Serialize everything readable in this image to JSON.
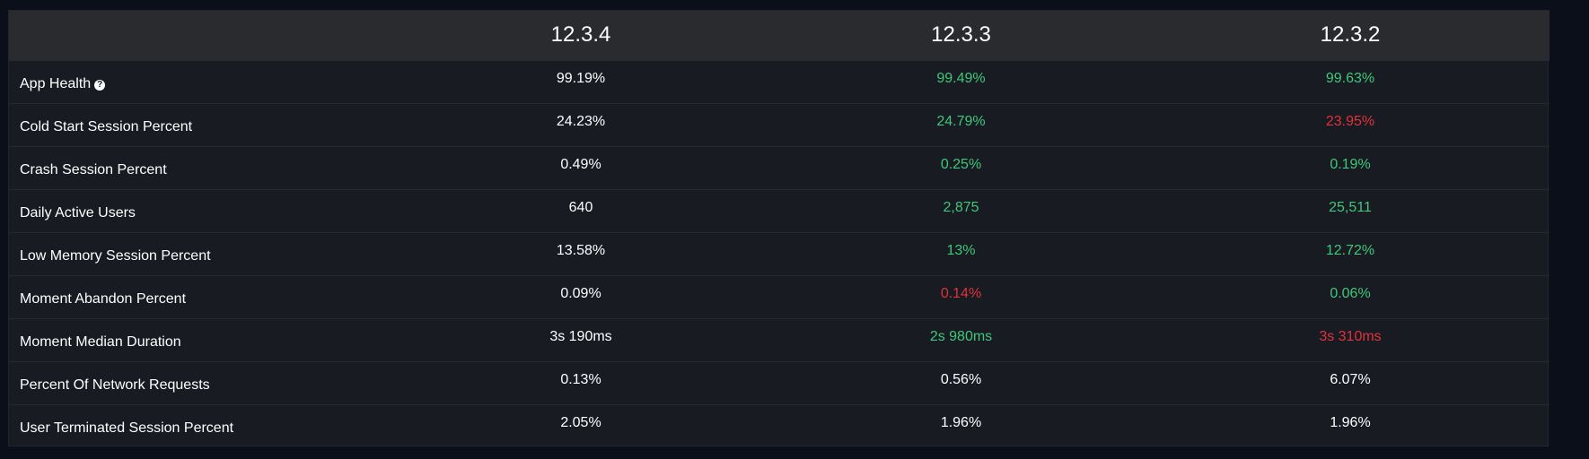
{
  "colors": {
    "neutral": "#ffffff",
    "better": "#3ec77a",
    "worse": "#e0323b"
  },
  "header": {
    "versions": [
      "12.3.4",
      "12.3.3",
      "12.3.2"
    ]
  },
  "rows": [
    {
      "label": "App Health",
      "help_icon": "question-circle-icon",
      "values": [
        "99.19%",
        "99.49%",
        "99.63%"
      ],
      "status": [
        "neutral",
        "better",
        "better"
      ]
    },
    {
      "label": "Cold Start Session Percent",
      "values": [
        "24.23%",
        "24.79%",
        "23.95%"
      ],
      "status": [
        "neutral",
        "better",
        "worse"
      ]
    },
    {
      "label": "Crash Session Percent",
      "values": [
        "0.49%",
        "0.25%",
        "0.19%"
      ],
      "status": [
        "neutral",
        "better",
        "better"
      ]
    },
    {
      "label": "Daily Active Users",
      "values": [
        "640",
        "2,875",
        "25,511"
      ],
      "status": [
        "neutral",
        "better",
        "better"
      ]
    },
    {
      "label": "Low Memory Session Percent",
      "values": [
        "13.58%",
        "13%",
        "12.72%"
      ],
      "status": [
        "neutral",
        "better",
        "better"
      ]
    },
    {
      "label": "Moment Abandon Percent",
      "values": [
        "0.09%",
        "0.14%",
        "0.06%"
      ],
      "status": [
        "neutral",
        "worse",
        "better"
      ]
    },
    {
      "label": "Moment Median Duration",
      "values": [
        "3s 190ms",
        "2s 980ms",
        "3s 310ms"
      ],
      "status": [
        "neutral",
        "better",
        "worse"
      ]
    },
    {
      "label": "Percent Of Network Requests",
      "values": [
        "0.13%",
        "0.56%",
        "6.07%"
      ],
      "status": [
        "neutral",
        "neutral",
        "neutral"
      ]
    },
    {
      "label": "User Terminated Session Percent",
      "values": [
        "2.05%",
        "1.96%",
        "1.96%"
      ],
      "status": [
        "neutral",
        "neutral",
        "neutral"
      ]
    }
  ]
}
